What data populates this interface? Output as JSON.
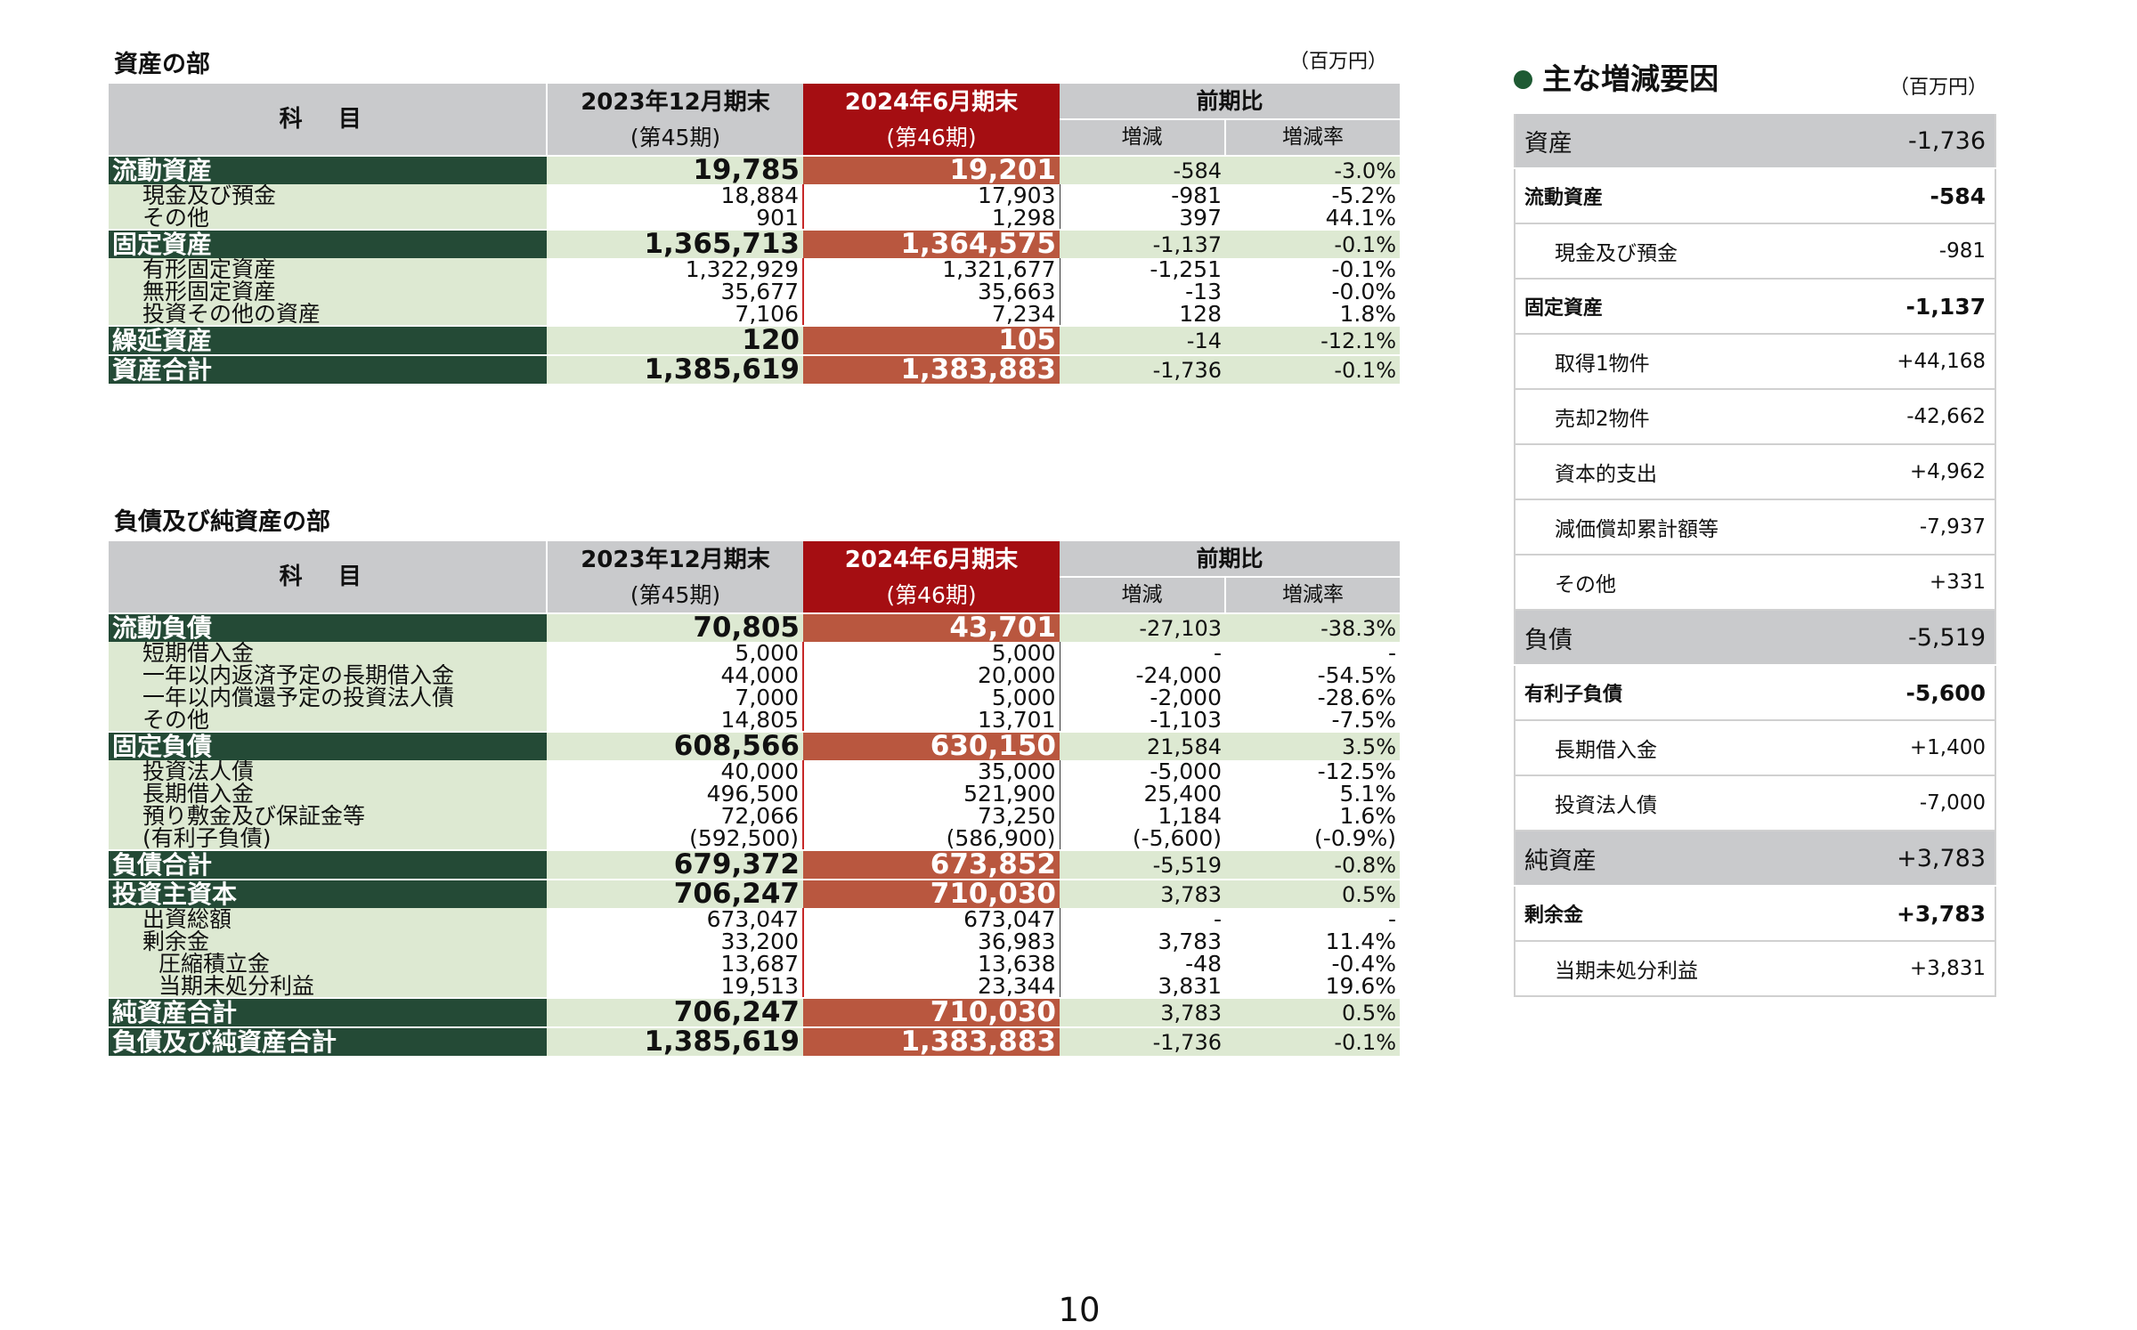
{
  "assets_section": {
    "title": "資産の部",
    "unit": "（百万円）",
    "header": {
      "kamoku": "科 目",
      "prev_period": "2023年12月期末",
      "prev_period_sub": "(第45期)",
      "curr_period": "2024年6月期末",
      "curr_period_sub": "(第46期)",
      "comparison": "前期比",
      "change": "増減",
      "change_rate": "増減率"
    },
    "rows": [
      {
        "type": "major",
        "label": "流動資産",
        "prev": "19,785",
        "curr": "19,201",
        "change": "-584",
        "rate": "-3.0%"
      },
      {
        "type": "minor",
        "label": "現金及び預金",
        "prev": "18,884",
        "curr": "17,903",
        "change": "-981",
        "rate": "-5.2%"
      },
      {
        "type": "minor",
        "label": "その他",
        "prev": "901",
        "curr": "1,298",
        "change": "397",
        "rate": "44.1%"
      },
      {
        "type": "major",
        "label": "固定資産",
        "prev": "1,365,713",
        "curr": "1,364,575",
        "change": "-1,137",
        "rate": "-0.1%"
      },
      {
        "type": "minor",
        "label": "有形固定資産",
        "prev": "1,322,929",
        "curr": "1,321,677",
        "change": "-1,251",
        "rate": "-0.1%"
      },
      {
        "type": "minor",
        "label": "無形固定資産",
        "prev": "35,677",
        "curr": "35,663",
        "change": "-13",
        "rate": "-0.0%"
      },
      {
        "type": "minor",
        "label": "投資その他の資産",
        "prev": "7,106",
        "curr": "7,234",
        "change": "128",
        "rate": "1.8%"
      },
      {
        "type": "major",
        "label": "繰延資産",
        "prev": "120",
        "curr": "105",
        "change": "-14",
        "rate": "-12.1%"
      },
      {
        "type": "major",
        "label": "資産合計",
        "prev": "1,385,619",
        "curr": "1,383,883",
        "change": "-1,736",
        "rate": "-0.1%"
      }
    ]
  },
  "liabilities_section": {
    "title": "負債及び純資産の部",
    "header": {
      "kamoku": "科 目",
      "prev_period": "2023年12月期末",
      "prev_period_sub": "(第45期)",
      "curr_period": "2024年6月期末",
      "curr_period_sub": "(第46期)",
      "comparison": "前期比",
      "change": "増減",
      "change_rate": "増減率"
    },
    "rows": [
      {
        "type": "major",
        "label": "流動負債",
        "prev": "70,805",
        "curr": "43,701",
        "change": "-27,103",
        "rate": "-38.3%"
      },
      {
        "type": "minor",
        "label": "短期借入金",
        "prev": "5,000",
        "curr": "5,000",
        "change": "-",
        "rate": "-"
      },
      {
        "type": "minor",
        "label": "一年以内返済予定の長期借入金",
        "prev": "44,000",
        "curr": "20,000",
        "change": "-24,000",
        "rate": "-54.5%"
      },
      {
        "type": "minor",
        "label": "一年以内償還予定の投資法人債",
        "prev": "7,000",
        "curr": "5,000",
        "change": "-2,000",
        "rate": "-28.6%"
      },
      {
        "type": "minor",
        "label": "その他",
        "prev": "14,805",
        "curr": "13,701",
        "change": "-1,103",
        "rate": "-7.5%"
      },
      {
        "type": "major",
        "label": "固定負債",
        "prev": "608,566",
        "curr": "630,150",
        "change": "21,584",
        "rate": "3.5%"
      },
      {
        "type": "minor",
        "label": "投資法人債",
        "prev": "40,000",
        "curr": "35,000",
        "change": "-5,000",
        "rate": "-12.5%"
      },
      {
        "type": "minor",
        "label": "長期借入金",
        "prev": "496,500",
        "curr": "521,900",
        "change": "25,400",
        "rate": "5.1%"
      },
      {
        "type": "minor",
        "label": "預り敷金及び保証金等",
        "prev": "72,066",
        "curr": "73,250",
        "change": "1,184",
        "rate": "1.6%"
      },
      {
        "type": "minor",
        "label": "(有利子負債)",
        "prev": "(592,500)",
        "curr": "(586,900)",
        "change": "(-5,600)",
        "rate": "(-0.9%)"
      },
      {
        "type": "major",
        "label": "負債合計",
        "prev": "679,372",
        "curr": "673,852",
        "change": "-5,519",
        "rate": "-0.8%"
      },
      {
        "type": "major",
        "label": "投資主資本",
        "prev": "706,247",
        "curr": "710,030",
        "change": "3,783",
        "rate": "0.5%"
      },
      {
        "type": "minor",
        "label": "出資総額",
        "prev": "673,047",
        "curr": "673,047",
        "change": "-",
        "rate": "-"
      },
      {
        "type": "minor",
        "label": "剰余金",
        "prev": "33,200",
        "curr": "36,983",
        "change": "3,783",
        "rate": "11.4%"
      },
      {
        "type": "minor",
        "deep": true,
        "label": "圧縮積立金",
        "prev": "13,687",
        "curr": "13,638",
        "change": "-48",
        "rate": "-0.4%"
      },
      {
        "type": "minor",
        "deep": true,
        "label": "当期未処分利益",
        "prev": "19,513",
        "curr": "23,344",
        "change": "3,831",
        "rate": "19.6%"
      },
      {
        "type": "major",
        "label": "純資産合計",
        "prev": "706,247",
        "curr": "710,030",
        "change": "3,783",
        "rate": "0.5%"
      },
      {
        "type": "major",
        "label": "負債及び純資産合計",
        "prev": "1,385,619",
        "curr": "1,383,883",
        "change": "-1,736",
        "rate": "-0.1%"
      }
    ]
  },
  "factors_panel": {
    "title": "主な増減要因",
    "unit": "（百万円）",
    "rows": [
      {
        "level": "cat",
        "label": "資産",
        "value": "-1,736"
      },
      {
        "level": "sub",
        "label": "流動資産",
        "value": "-584"
      },
      {
        "level": "item",
        "label": "現金及び預金",
        "value": "-981"
      },
      {
        "level": "sub",
        "label": "固定資産",
        "value": "-1,137"
      },
      {
        "level": "item",
        "label": "取得1物件",
        "value": "+44,168"
      },
      {
        "level": "item",
        "label": "売却2物件",
        "value": "-42,662"
      },
      {
        "level": "item",
        "label": "資本的支出",
        "value": "+4,962"
      },
      {
        "level": "item",
        "label": "減価償却累計額等",
        "value": "-7,937"
      },
      {
        "level": "item",
        "label": "その他",
        "value": "+331"
      },
      {
        "level": "cat",
        "label": "負債",
        "value": "-5,519"
      },
      {
        "level": "sub",
        "label": "有利子負債",
        "value": "-5,600"
      },
      {
        "level": "item",
        "label": "長期借入金",
        "value": "+1,400"
      },
      {
        "level": "item",
        "label": "投資法人債",
        "value": "-7,000"
      },
      {
        "level": "cat",
        "label": "純資産",
        "value": "+3,783"
      },
      {
        "level": "sub",
        "label": "剰余金",
        "value": "+3,783"
      },
      {
        "level": "item",
        "label": "当期未処分利益",
        "value": "+3,831"
      }
    ]
  },
  "page_number": "10"
}
